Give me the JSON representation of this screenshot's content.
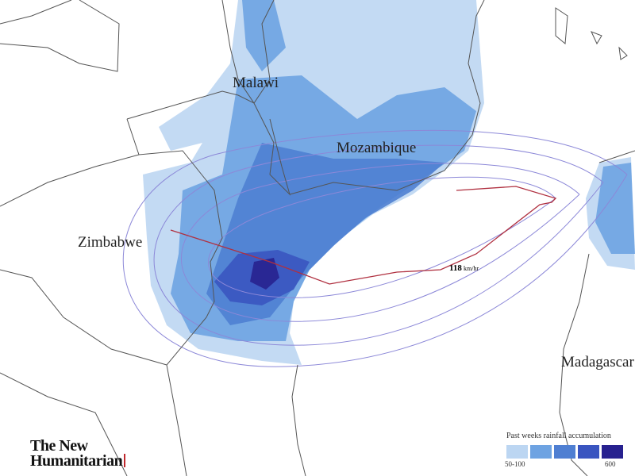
{
  "map": {
    "countries": [
      "Malawi",
      "Mozambique",
      "Zimbabwe",
      "Madagascar"
    ],
    "storm": {
      "speed": "118",
      "unit": "km/hr"
    },
    "legend": {
      "title": "Past weeks rainfall accumulation",
      "colors": [
        "#bcd6f2",
        "#6ea3e2",
        "#4f7fd2",
        "#3a55c0",
        "#27218f"
      ],
      "min_label": "50-100",
      "max_label": "600"
    },
    "logo": {
      "line1": "The New",
      "line2": "Humanitarian"
    }
  }
}
